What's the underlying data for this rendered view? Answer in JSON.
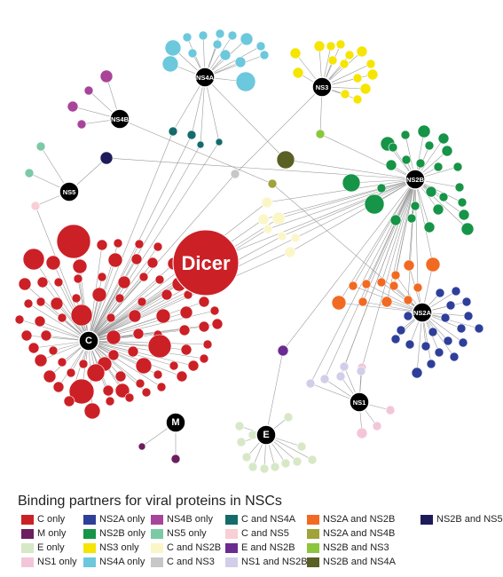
{
  "title": "Binding partners for viral proteins in NSCs",
  "hubs": [
    {
      "key": "C",
      "label": "C"
    },
    {
      "key": "M",
      "label": "M"
    },
    {
      "key": "E",
      "label": "E"
    },
    {
      "key": "NS1",
      "label": "NS1"
    },
    {
      "key": "NS2A",
      "label": "NS2A"
    },
    {
      "key": "NS2B",
      "label": "NS2B"
    },
    {
      "key": "NS3",
      "label": "NS3"
    },
    {
      "key": "NS4A",
      "label": "NS4A"
    },
    {
      "key": "NS4B",
      "label": "NS4B"
    },
    {
      "key": "NS5",
      "label": "NS5"
    }
  ],
  "dicer_label": "Dicer",
  "colors": {
    "c_only": "#cc2027",
    "m_only": "#6b1f5e",
    "e_only": "#d7e8c7",
    "ns1_only": "#f2c6d8",
    "ns2a_only": "#2e3f9a",
    "ns2b_only": "#169447",
    "ns3_only": "#f5e500",
    "ns4a_only": "#6cc8dc",
    "ns4b_only": "#a8449a",
    "ns5_only": "#7cc9a6",
    "c_ns2b": "#fbf6c8",
    "c_ns3": "#c7c7c7",
    "c_ns4a": "#156b6b",
    "c_ns5": "#f7cfd4",
    "e_ns2b": "#6a2c91",
    "ns1_ns2b": "#d2cde9",
    "ns2a_ns2b": "#f26a21",
    "ns2a_ns4b": "#a0a23a",
    "ns2b_ns3": "#8cc63e",
    "ns2b_ns4a": "#5a5f23",
    "ns2b_ns5": "#1e1b5b"
  },
  "legend": [
    {
      "label": "C only",
      "color": "#cc2027"
    },
    {
      "label": "M only",
      "color": "#6b1f5e"
    },
    {
      "label": "E only",
      "color": "#d7e8c7"
    },
    {
      "label": "NS1 only",
      "color": "#f2c6d8"
    },
    {
      "label": "NS2A only",
      "color": "#2e3f9a"
    },
    {
      "label": "NS2B only",
      "color": "#169447"
    },
    {
      "label": "NS3 only",
      "color": "#f5e500"
    },
    {
      "label": "NS4A only",
      "color": "#6cc8dc"
    },
    {
      "label": "NS4B only",
      "color": "#a8449a"
    },
    {
      "label": "NS5 only",
      "color": "#7cc9a6"
    },
    {
      "label": "C and NS2B",
      "color": "#fbf6c8"
    },
    {
      "label": "C and NS3",
      "color": "#c7c7c7"
    },
    {
      "label": "C and NS4A",
      "color": "#156b6b"
    },
    {
      "label": "C and NS5",
      "color": "#f7cfd4"
    },
    {
      "label": "E and NS2B",
      "color": "#6a2c91"
    },
    {
      "label": "NS1 and NS2B",
      "color": "#d2cde9"
    },
    {
      "label": "NS2A and NS2B",
      "color": "#f26a21"
    },
    {
      "label": "NS2A and NS4B",
      "color": "#a0a23a"
    },
    {
      "label": "NS2B and NS3",
      "color": "#8cc63e"
    },
    {
      "label": "NS2B and NS4A",
      "color": "#5a5f23"
    },
    {
      "label": "NS2B and NS5",
      "color": "#1e1b5b"
    }
  ]
}
